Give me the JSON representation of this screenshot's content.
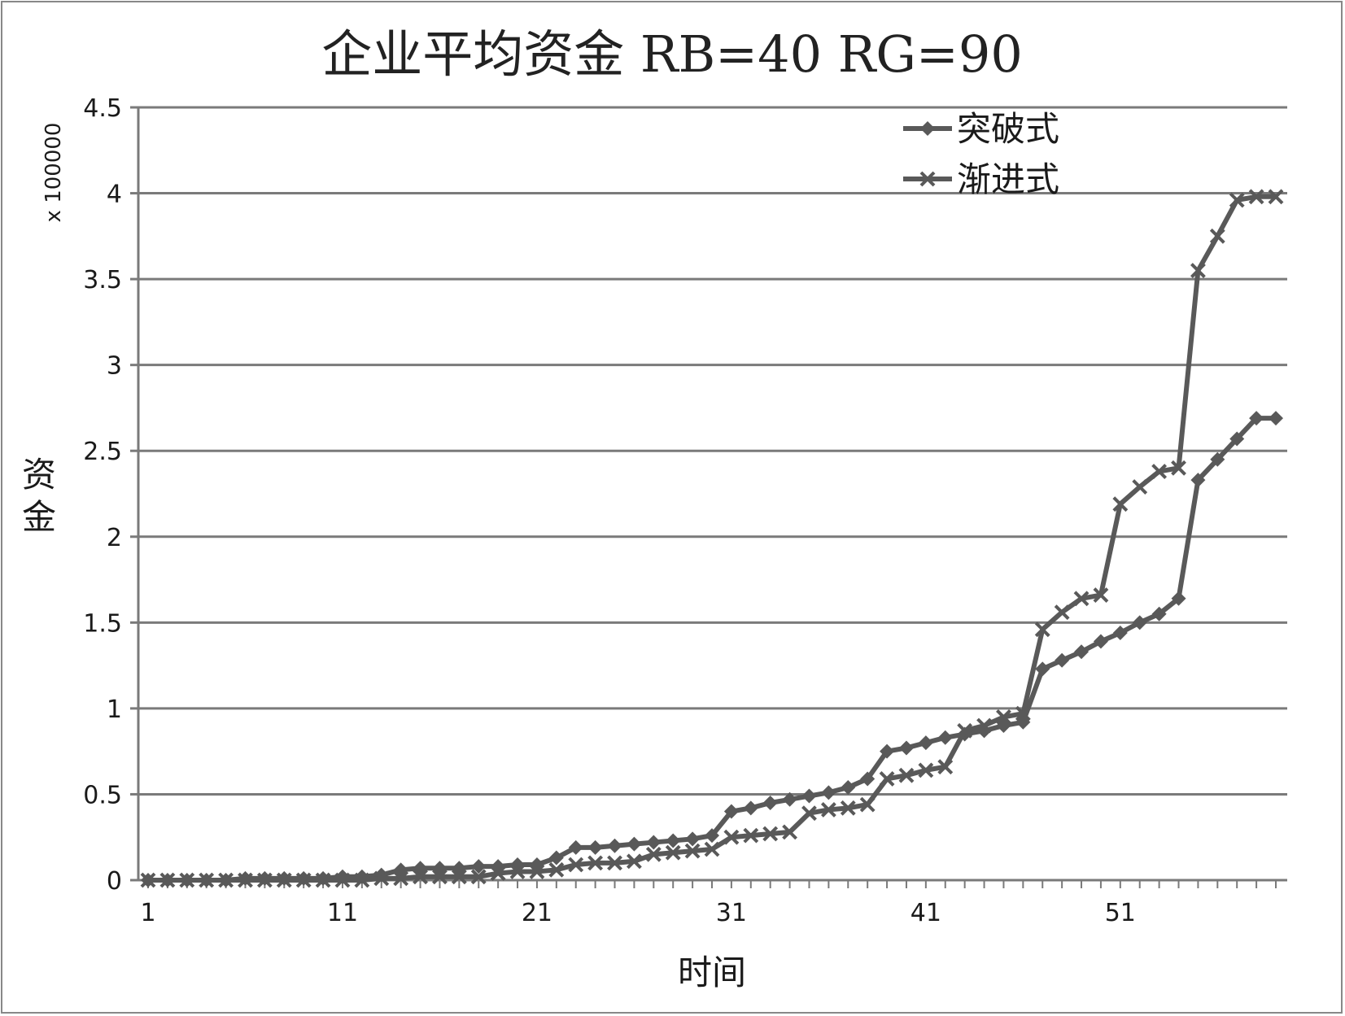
{
  "chart_data": {
    "type": "line",
    "title": "企业平均资金 RB=40 RG=90",
    "xlabel": "时间",
    "ylabel": "资金",
    "yscale_label": "x 100000",
    "xlim": [
      1,
      59
    ],
    "ylim": [
      0,
      4.5
    ],
    "yticks": [
      "0",
      "0.5",
      "1",
      "1.5",
      "2",
      "2.5",
      "3",
      "3.5",
      "4",
      "4.5"
    ],
    "xticks": [
      "1",
      "11",
      "21",
      "31",
      "41",
      "51"
    ],
    "grid": true,
    "legend_position": "top-right",
    "x": [
      1,
      2,
      3,
      4,
      5,
      6,
      7,
      8,
      9,
      10,
      11,
      12,
      13,
      14,
      15,
      16,
      17,
      18,
      19,
      20,
      21,
      22,
      23,
      24,
      25,
      26,
      27,
      28,
      29,
      30,
      31,
      32,
      33,
      34,
      35,
      36,
      37,
      38,
      39,
      40,
      41,
      42,
      43,
      44,
      45,
      46,
      47,
      48,
      49,
      50,
      51,
      52,
      53,
      54,
      55,
      56,
      57,
      58,
      59
    ],
    "series": [
      {
        "name": "突破式",
        "marker": "diamond",
        "color": "#595959",
        "values": [
          0.0,
          0.0,
          0.0,
          0.0,
          0.0,
          0.01,
          0.01,
          0.01,
          0.01,
          0.01,
          0.02,
          0.02,
          0.03,
          0.06,
          0.07,
          0.07,
          0.07,
          0.08,
          0.08,
          0.09,
          0.09,
          0.13,
          0.19,
          0.19,
          0.2,
          0.21,
          0.22,
          0.23,
          0.24,
          0.26,
          0.4,
          0.42,
          0.45,
          0.47,
          0.49,
          0.51,
          0.54,
          0.59,
          0.75,
          0.77,
          0.8,
          0.83,
          0.85,
          0.87,
          0.9,
          0.92,
          1.23,
          1.28,
          1.33,
          1.39,
          1.44,
          1.5,
          1.55,
          1.64,
          2.33,
          2.45,
          2.57,
          2.69,
          2.69
        ]
      },
      {
        "name": "渐进式",
        "marker": "x",
        "color": "#595959",
        "values": [
          0.0,
          0.0,
          0.0,
          0.0,
          0.0,
          0.0,
          0.0,
          0.0,
          0.0,
          0.0,
          0.0,
          0.0,
          0.01,
          0.01,
          0.02,
          0.02,
          0.02,
          0.02,
          0.04,
          0.05,
          0.05,
          0.06,
          0.09,
          0.1,
          0.1,
          0.11,
          0.15,
          0.16,
          0.17,
          0.18,
          0.25,
          0.26,
          0.27,
          0.28,
          0.39,
          0.41,
          0.42,
          0.44,
          0.59,
          0.61,
          0.64,
          0.66,
          0.87,
          0.9,
          0.95,
          0.97,
          1.46,
          1.56,
          1.64,
          1.66,
          2.19,
          2.29,
          2.38,
          2.4,
          3.55,
          3.75,
          3.96,
          3.98,
          3.98
        ]
      }
    ]
  }
}
